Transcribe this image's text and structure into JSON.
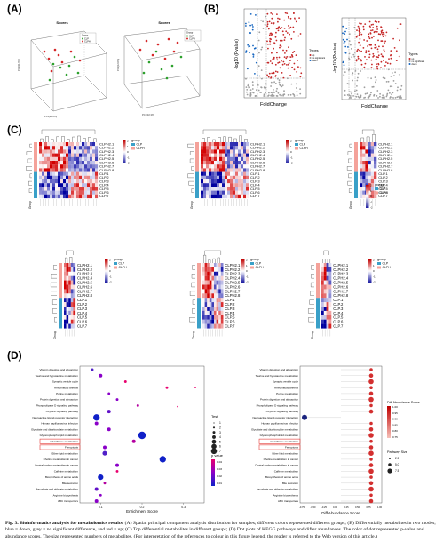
{
  "panels": {
    "a": "(A)",
    "b": "(B)",
    "c": "(C)",
    "d": "(D)"
  },
  "pca": {
    "title": "Scores",
    "legend_title": "Group",
    "groups": [
      "CLP",
      "CLPH"
    ],
    "colors": {
      "CLP": "#2ca02c",
      "CLPH": "#d62728"
    },
    "xlabel": "PC1(29.0%)",
    "ylabel": "PC2(18.7%)",
    "zlabel": "PC3(11.5%)",
    "xlabel2": "PC1(32.3%)",
    "ylabel2": "PC2(18.5%)",
    "zlabel2": "PC3(12.6%)"
  },
  "volcano": {
    "ylabel": "-log10 (Pvalue)",
    "xlabel": "FoldChange",
    "legend_title": "Types",
    "legend": [
      "up",
      "no significant",
      "down"
    ],
    "colors": {
      "up": "#c62828",
      "ns": "#9e9e9e",
      "down": "#1565c0"
    }
  },
  "heatmap": {
    "samples_a": [
      "CLPH2.1",
      "CLPH2.2",
      "CLPH2.3",
      "CLPH2.4",
      "CLPH2.5",
      "CLPH2.6",
      "CLPH2.7",
      "CLPH2.8",
      "CLP.1",
      "CLP.2",
      "CLP.3",
      "CLP.4",
      "CLP.5",
      "CLP.6",
      "CLP.7"
    ],
    "samples_b": [
      "CLPH2.1",
      "CLPH2.2",
      "CLPH2.3",
      "CLPH2.4",
      "CLPH2.5",
      "CLPH2.6",
      "CLPH2.7",
      "CLPH2.8",
      "CLP.1",
      "CLP.2",
      "CLP.3",
      "CLP.4",
      "CLP.5",
      "CLP.6",
      "CLP.7"
    ],
    "samples_c": [
      "CLPH2.1",
      "CLPH2.2",
      "CLPH2.3",
      "CLPH2.4",
      "CLPH2.5",
      "CLPH2.6",
      "CLPH2.7",
      "CLPH2.8",
      "CLP.1",
      "CLP.2",
      "CLP.3",
      "CLP.4",
      "CLP.5",
      "CLP.6",
      "CLP.7"
    ],
    "legend_title": "group",
    "groups": [
      "CLP",
      "CLPH"
    ],
    "group_colors": {
      "CLP": "#3aa0c8",
      "CLPH": "#f4a29a"
    },
    "scale_ticks": [
      "2",
      "1",
      "0",
      "-1",
      "-2"
    ],
    "side_label": "Group"
  },
  "dotplot_left": {
    "pathways": [
      "Vitamin digestion and absorption",
      "Taurine and hypotaurine metabolism",
      "Synaptic vesicle cycle",
      "Rheumatoid arthritis",
      "Purine metabolism",
      "Protein digestion and absorption",
      "Phospholipase D signaling pathway",
      "Oxytocin signaling pathway",
      "Neuroactive ligand-receptor interaction",
      "Human papillomavirus infection",
      "Glycolate and dicarboxylate metabolism",
      "Glycerophospholipid metabolism",
      "Glutathione metabolism",
      "Ferroptosis",
      "Ether lipid metabolism",
      "Choline metabolism in cancer",
      "Central carbon metabolism in cancer",
      "Caffeine metabolism",
      "Biosynthesis of amino acids",
      "Bile secretion",
      "Ascorbate and aldarate metabolism",
      "Arginine biosynthesis",
      "ABC transporters"
    ],
    "xlabel": "Enrichment Score",
    "xticks": [
      "0.1",
      "0.2",
      "0.3"
    ],
    "size_title": "Test",
    "size_ticks": [
      "1",
      "2",
      "3",
      "4",
      "5",
      "6",
      "7"
    ],
    "color_title": "p value",
    "color_ticks": [
      "0.04",
      "0.03",
      "0.02",
      "0.01"
    ],
    "highlight": [
      "Glutathione metabolism",
      "Ferroptosis"
    ]
  },
  "dotplot_right": {
    "pathways": [
      "Vitamin digestion and absorption",
      "Taurine and hypotaurine metabolism",
      "Synaptic vesicle cycle",
      "Rheumatoid arthritis",
      "Purine metabolism",
      "Protein digestion and absorption",
      "Phospholipase D signaling pathway",
      "Oxytocin signaling pathway",
      "Neuroactive ligand-receptor interaction",
      "Human papillomavirus infection",
      "Glycolate and dicarboxylate metabolism",
      "Glycerophospholipid metabolism",
      "Glutathione metabolism",
      "Ferroptosis",
      "Ether lipid metabolism",
      "Choline metabolism in cancer",
      "Central carbon metabolism in cancer",
      "Caffeine metabolism",
      "Biosynthesis of amino acids",
      "Bile secretion",
      "Ascorbate and aldarate metabolism",
      "Arginine biosynthesis",
      "ABC transporters"
    ],
    "xlabel": "Diff Abundance Score",
    "xticks": [
      "-0.75",
      "-0.50",
      "-0.25",
      "0.00",
      "0.25",
      "0.50",
      "0.75",
      "1.00"
    ],
    "color_title": "Diff Abundance Score",
    "color_ticks": [
      "1.00",
      "0.95",
      "0.90",
      "0.85",
      "0.80",
      "0.75"
    ],
    "size_title": "Pathway Size",
    "size_ticks": [
      "2.5",
      "5.0",
      "7.5"
    ],
    "highlight": [
      "Glutathione metabolism",
      "Ferroptosis"
    ]
  },
  "caption": {
    "label": "Fig. 3.",
    "bold": "Bioinformatics analysis for metabolomics results.",
    "text": " (A) Spatial principal component analysis distribution for samples; different colors represented different groups; (B) Differentially metabolites in two modes; blue = down, grey = no significant difference, and red = up; (C) Top differential metabolites in different groups; (D) Dot plots of KEGG pathways and differ abundances. The color of dot represented p-value and abundance scores. The size represented numbers of metabolites. (For interpretation of the references to colour in this figure legend, the reader is referred to the Web version of this article.)"
  }
}
